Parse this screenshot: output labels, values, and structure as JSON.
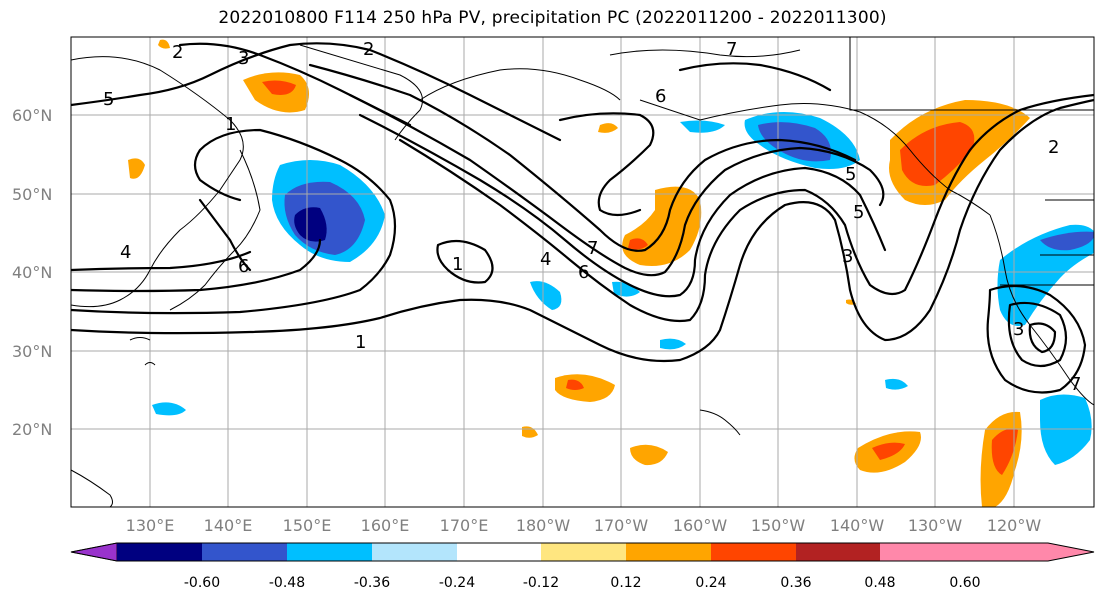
{
  "title": "2022010800 F114 250 hPa PV, precipitation PC (2022011200 - 2022011300)",
  "lat_labels": [
    "60°N",
    "50°N",
    "40°N",
    "30°N",
    "20°N"
  ],
  "lon_labels": [
    "130°E",
    "140°E",
    "150°E",
    "160°E",
    "170°E",
    "180°W",
    "170°W",
    "160°W",
    "150°W",
    "140°W",
    "130°W",
    "120°W"
  ],
  "colorbar": {
    "colors": [
      "#9933cc",
      "#000080",
      "#3355cc",
      "#00bfff",
      "#b3e5fc",
      "#ffffff",
      "#ffe680",
      "#ffa500",
      "#ff4500",
      "#b22222",
      "#ff88aa"
    ],
    "tick_labels": [
      "-0.60",
      "-0.48",
      "-0.36",
      "-0.24",
      "-0.12",
      "0.12",
      "0.24",
      "0.36",
      "0.48",
      "0.60"
    ]
  },
  "contour_labels": [
    "2",
    "3",
    "5",
    "2",
    "7",
    "6",
    "4",
    "6",
    "1",
    "7",
    "4",
    "6",
    "1",
    "3",
    "5",
    "5",
    "2",
    "3",
    "1",
    "7"
  ]
}
